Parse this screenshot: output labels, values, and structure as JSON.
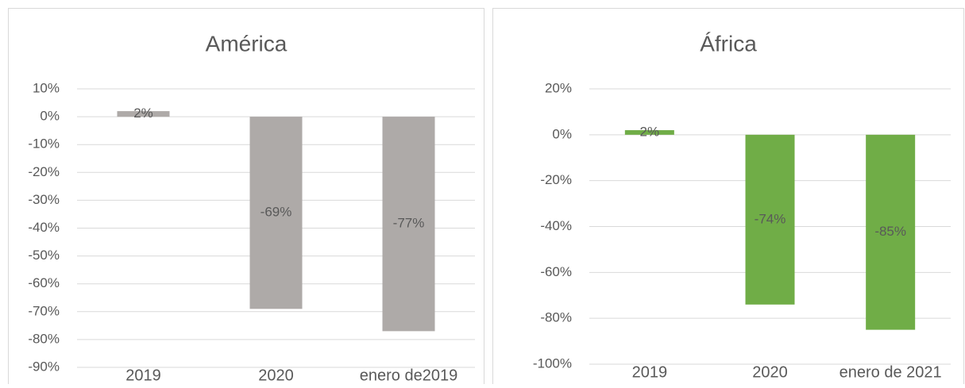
{
  "chart_data": [
    {
      "type": "bar",
      "title": "América",
      "categories": [
        "2019",
        "2020",
        "enero de2019"
      ],
      "values": [
        2,
        -69,
        -77
      ],
      "value_labels": [
        "2%",
        "-69%",
        "-77%"
      ],
      "color": "#aeaaa8",
      "ylim": [
        -90,
        10
      ],
      "yticks": [
        {
          "value": 10,
          "label": "10%"
        },
        {
          "value": 0,
          "label": "0%"
        },
        {
          "value": -10,
          "label": "-10%"
        },
        {
          "value": -20,
          "label": "-20%"
        },
        {
          "value": -30,
          "label": "-30%"
        },
        {
          "value": -40,
          "label": "-40%"
        },
        {
          "value": -50,
          "label": "-50%"
        },
        {
          "value": -60,
          "label": "-60%"
        },
        {
          "value": -70,
          "label": "-70%"
        },
        {
          "value": -80,
          "label": "-80%"
        },
        {
          "value": -90,
          "label": "-90%"
        }
      ],
      "grid": true
    },
    {
      "type": "bar",
      "title": "África",
      "categories": [
        "2019",
        "2020",
        "enero de 2021"
      ],
      "values": [
        2,
        -74,
        -85
      ],
      "value_labels": [
        "2%",
        "-74%",
        "-85%"
      ],
      "color": "#70ad47",
      "ylim": [
        -100,
        20
      ],
      "yticks": [
        {
          "value": 20,
          "label": "20%"
        },
        {
          "value": 0,
          "label": "0%"
        },
        {
          "value": -20,
          "label": "-20%"
        },
        {
          "value": -40,
          "label": "-40%"
        },
        {
          "value": -60,
          "label": "-60%"
        },
        {
          "value": -80,
          "label": "-80%"
        },
        {
          "value": -100,
          "label": "-100%"
        }
      ],
      "grid": true
    }
  ]
}
